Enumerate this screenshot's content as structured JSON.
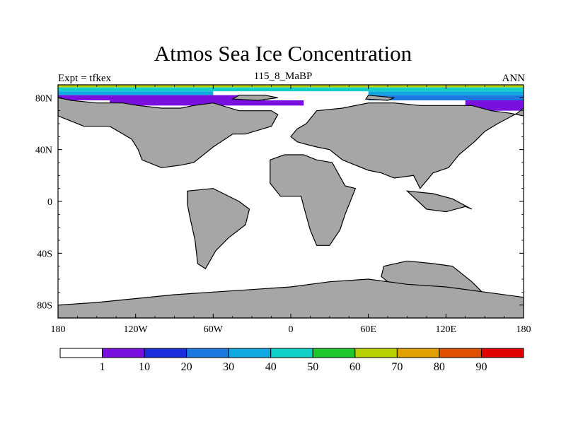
{
  "title": "Atmos Sea Ice Concentration",
  "left_label": "Expt = tfkex",
  "center_label": "115_8_MaBP",
  "right_label": "ANN",
  "colors": {
    "land": "#a6a6a6",
    "ocean": "#ffffff",
    "outline": "#000000"
  },
  "chart_data": {
    "type": "heatmap",
    "title": "Atmos Sea Ice Concentration",
    "xlim": [
      -180,
      180
    ],
    "ylim": [
      -90,
      90
    ],
    "x_ticks": [
      {
        "value": -180,
        "label": "180"
      },
      {
        "value": -120,
        "label": "120W"
      },
      {
        "value": -60,
        "label": "60W"
      },
      {
        "value": 0,
        "label": "0"
      },
      {
        "value": 60,
        "label": "60E"
      },
      {
        "value": 120,
        "label": "120E"
      },
      {
        "value": 180,
        "label": "180"
      }
    ],
    "y_ticks": [
      {
        "value": 80,
        "label": "80N"
      },
      {
        "value": 40,
        "label": "40N"
      },
      {
        "value": 0,
        "label": "0"
      },
      {
        "value": -40,
        "label": "40S"
      },
      {
        "value": -80,
        "label": "80S"
      }
    ],
    "colorbar": {
      "levels": [
        "1",
        "10",
        "20",
        "30",
        "40",
        "50",
        "60",
        "70",
        "80",
        "90"
      ],
      "colors": [
        "#ffffff",
        "#7a10e0",
        "#1a2ee0",
        "#1a78e0",
        "#10a8e0",
        "#10d0c8",
        "#20c830",
        "#b8d000",
        "#e0a000",
        "#e05000",
        "#e00000"
      ]
    },
    "ice_bands": [
      {
        "lat_min": 88,
        "lat_max": 90,
        "lon_min": -180,
        "lon_max": 180,
        "color": "#b8d000"
      },
      {
        "lat_min": 85,
        "lat_max": 88,
        "lon_min": -180,
        "lon_max": 180,
        "color": "#10d0c8"
      },
      {
        "lat_min": 82,
        "lat_max": 85,
        "lon_min": -180,
        "lon_max": -60,
        "color": "#10a8e0"
      },
      {
        "lat_min": 82,
        "lat_max": 85,
        "lon_min": 60,
        "lon_max": 180,
        "color": "#10a8e0"
      },
      {
        "lat_min": 78,
        "lat_max": 82,
        "lon_min": -180,
        "lon_max": -20,
        "color": "#7a10e0"
      },
      {
        "lat_min": 74,
        "lat_max": 78,
        "lon_min": -140,
        "lon_max": 10,
        "color": "#7a10e0"
      },
      {
        "lat_min": 78,
        "lat_max": 82,
        "lon_min": 60,
        "lon_max": 180,
        "color": "#1a78e0"
      },
      {
        "lat_min": 70,
        "lat_max": 78,
        "lon_min": 135,
        "lon_max": 180,
        "color": "#7a10e0"
      }
    ],
    "land_polygons": [
      {
        "name": "north-america",
        "points": [
          [
            -180,
            80
          ],
          [
            -170,
            78
          ],
          [
            -150,
            76
          ],
          [
            -130,
            76
          ],
          [
            -118,
            74
          ],
          [
            -100,
            72
          ],
          [
            -85,
            72
          ],
          [
            -75,
            74
          ],
          [
            -60,
            76
          ],
          [
            -40,
            70
          ],
          [
            -15,
            70
          ],
          [
            -10,
            67
          ],
          [
            -15,
            58
          ],
          [
            -35,
            52
          ],
          [
            -45,
            52
          ],
          [
            -60,
            42
          ],
          [
            -75,
            30
          ],
          [
            -85,
            28
          ],
          [
            -100,
            26
          ],
          [
            -115,
            32
          ],
          [
            -118,
            40
          ],
          [
            -123,
            48
          ],
          [
            -140,
            58
          ],
          [
            -160,
            58
          ],
          [
            -170,
            62
          ],
          [
            -180,
            66
          ]
        ]
      },
      {
        "name": "europe-asia",
        "points": [
          [
            20,
            70
          ],
          [
            40,
            72
          ],
          [
            60,
            76
          ],
          [
            80,
            76
          ],
          [
            100,
            74
          ],
          [
            120,
            74
          ],
          [
            140,
            74
          ],
          [
            155,
            70
          ],
          [
            170,
            68
          ],
          [
            180,
            66
          ],
          [
            180,
            72
          ],
          [
            175,
            68
          ],
          [
            160,
            60
          ],
          [
            150,
            54
          ],
          [
            142,
            46
          ],
          [
            130,
            36
          ],
          [
            122,
            26
          ],
          [
            110,
            22
          ],
          [
            100,
            10
          ],
          [
            95,
            20
          ],
          [
            80,
            18
          ],
          [
            70,
            22
          ],
          [
            60,
            24
          ],
          [
            50,
            28
          ],
          [
            40,
            32
          ],
          [
            30,
            40
          ],
          [
            20,
            42
          ],
          [
            12,
            44
          ],
          [
            5,
            46
          ],
          [
            0,
            50
          ],
          [
            5,
            56
          ],
          [
            12,
            60
          ]
        ]
      },
      {
        "name": "south-america",
        "points": [
          [
            -80,
            8
          ],
          [
            -60,
            10
          ],
          [
            -40,
            0
          ],
          [
            -32,
            -6
          ],
          [
            -35,
            -18
          ],
          [
            -48,
            -28
          ],
          [
            -58,
            -38
          ],
          [
            -66,
            -52
          ],
          [
            -72,
            -48
          ],
          [
            -74,
            -30
          ],
          [
            -78,
            -12
          ],
          [
            -80,
            -2
          ]
        ]
      },
      {
        "name": "africa",
        "points": [
          [
            -16,
            32
          ],
          [
            -5,
            36
          ],
          [
            10,
            36
          ],
          [
            20,
            32
          ],
          [
            32,
            30
          ],
          [
            42,
            12
          ],
          [
            50,
            10
          ],
          [
            42,
            -10
          ],
          [
            38,
            -22
          ],
          [
            30,
            -34
          ],
          [
            20,
            -34
          ],
          [
            15,
            -22
          ],
          [
            10,
            -4
          ],
          [
            8,
            4
          ],
          [
            -8,
            4
          ],
          [
            -16,
            14
          ]
        ]
      },
      {
        "name": "india-asia-south",
        "points": [
          [
            90,
            8
          ],
          [
            105,
            -6
          ],
          [
            120,
            -8
          ],
          [
            135,
            -4
          ],
          [
            140,
            -6
          ],
          [
            125,
            2
          ],
          [
            110,
            6
          ]
        ]
      },
      {
        "name": "australia",
        "points": [
          [
            72,
            -50
          ],
          [
            90,
            -46
          ],
          [
            110,
            -48
          ],
          [
            125,
            -50
          ],
          [
            140,
            -62
          ],
          [
            150,
            -72
          ],
          [
            140,
            -74
          ],
          [
            120,
            -72
          ],
          [
            100,
            -70
          ],
          [
            80,
            -66
          ],
          [
            70,
            -58
          ]
        ]
      },
      {
        "name": "antarctica",
        "points": [
          [
            -180,
            -80
          ],
          [
            -150,
            -78
          ],
          [
            -120,
            -75
          ],
          [
            -90,
            -72
          ],
          [
            -60,
            -70
          ],
          [
            -30,
            -68
          ],
          [
            0,
            -66
          ],
          [
            30,
            -62
          ],
          [
            60,
            -60
          ],
          [
            90,
            -64
          ],
          [
            120,
            -66
          ],
          [
            150,
            -70
          ],
          [
            180,
            -74
          ],
          [
            180,
            -90
          ],
          [
            -180,
            -90
          ]
        ]
      },
      {
        "name": "arctic-island-1",
        "points": [
          [
            -40,
            82
          ],
          [
            -20,
            82
          ],
          [
            -10,
            80
          ],
          [
            -25,
            78
          ],
          [
            -45,
            79
          ]
        ]
      },
      {
        "name": "arctic-island-2",
        "points": [
          [
            60,
            82
          ],
          [
            80,
            80
          ],
          [
            75,
            78
          ],
          [
            58,
            79
          ]
        ]
      }
    ]
  }
}
